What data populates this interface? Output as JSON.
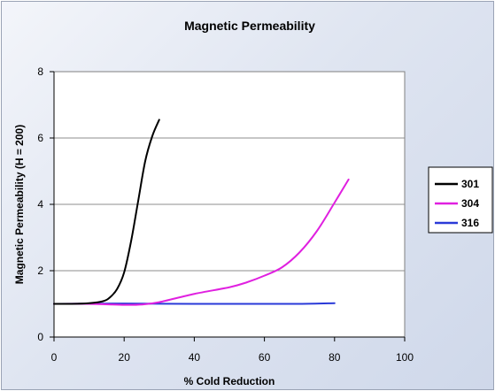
{
  "chart_data": {
    "type": "line",
    "title": "Magnetic Permeability",
    "xlabel": "% Cold Reduction",
    "ylabel": "Magnetic Permeability (H = 200)",
    "xlim": [
      0,
      100
    ],
    "ylim": [
      0,
      8
    ],
    "x_ticks": [
      "0",
      "20",
      "40",
      "60",
      "80",
      "100"
    ],
    "y_ticks": [
      "0",
      "2",
      "4",
      "6",
      "8"
    ],
    "grid": "horizontal",
    "legend_position": "right",
    "series": [
      {
        "name": "301",
        "color": "#000000",
        "x": [
          0,
          5,
          10,
          14,
          16,
          18,
          20,
          22,
          24,
          26,
          28,
          30
        ],
        "y": [
          1.0,
          1.0,
          1.02,
          1.08,
          1.2,
          1.45,
          1.95,
          2.9,
          4.1,
          5.3,
          6.05,
          6.55
        ]
      },
      {
        "name": "304",
        "color": "#e020e0",
        "x": [
          0,
          10,
          20,
          25,
          30,
          40,
          50,
          55,
          60,
          65,
          70,
          75,
          80,
          84
        ],
        "y": [
          1.0,
          1.0,
          0.97,
          0.98,
          1.05,
          1.3,
          1.5,
          1.65,
          1.85,
          2.1,
          2.55,
          3.2,
          4.05,
          4.75
        ]
      },
      {
        "name": "316",
        "color": "#2a3ad8",
        "x": [
          0,
          20,
          40,
          60,
          70,
          80
        ],
        "y": [
          1.0,
          1.01,
          1.0,
          1.0,
          1.0,
          1.02
        ]
      }
    ]
  }
}
